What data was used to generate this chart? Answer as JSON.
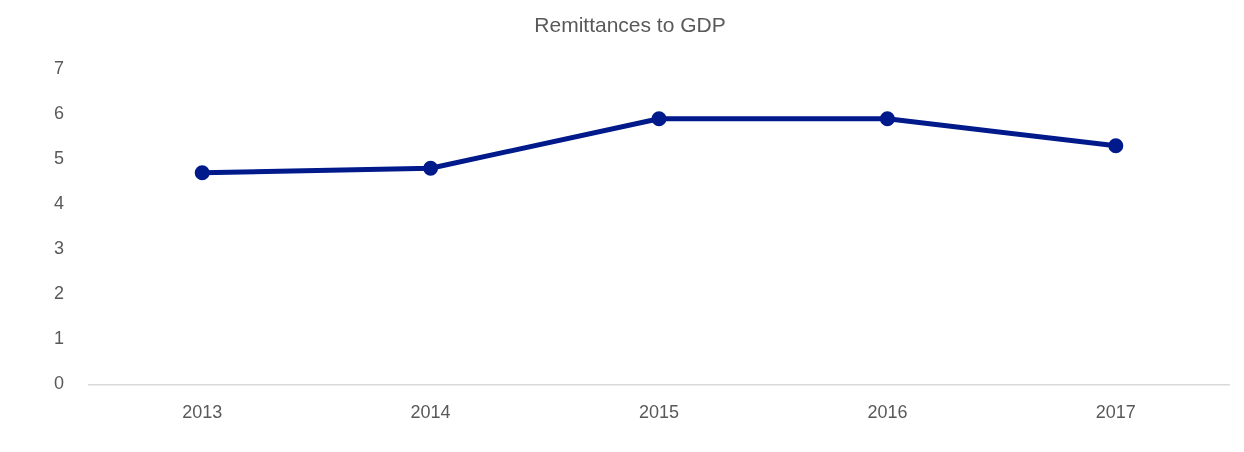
{
  "chart_data": {
    "type": "line",
    "title": "Remittances to GDP",
    "categories": [
      "2013",
      "2014",
      "2015",
      "2016",
      "2017"
    ],
    "series": [
      {
        "color": "#001a8c",
        "values": [
          4.7,
          4.8,
          5.9,
          5.9,
          5.3
        ]
      }
    ],
    "ylim": [
      0,
      7
    ],
    "yticks": [
      0,
      1,
      2,
      3,
      4,
      5,
      6,
      7
    ],
    "grid": false,
    "legend": false,
    "marker": "circle",
    "line_style": "solid"
  }
}
